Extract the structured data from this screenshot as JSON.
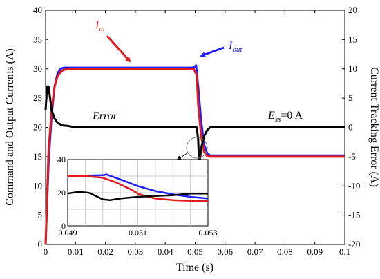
{
  "chart_data": {
    "type": "line",
    "xlabel": "Time (s)",
    "ylabel_left": "Command and Output Currents (A)",
    "ylabel_right": "Current Tracking Error (A)",
    "xlim": [
      0,
      0.1
    ],
    "ylim_left": [
      0,
      40
    ],
    "ylim_right": [
      -20,
      20
    ],
    "x_ticks": [
      "0",
      "0.01",
      "0.02",
      "0.03",
      "0.04",
      "0.05",
      "0.06",
      "0.07",
      "0.08",
      "0.09",
      "0.1"
    ],
    "y_ticks_left": [
      "0",
      "5",
      "10",
      "15",
      "20",
      "25",
      "30",
      "35",
      "40"
    ],
    "y_ticks_right": [
      "-20",
      "-15",
      "-10",
      "-5",
      "0",
      "5",
      "10",
      "15",
      "20"
    ],
    "grid": false,
    "series": [
      {
        "name": "Im",
        "axis": "left",
        "color": "#e31a1c",
        "x": [
          0,
          0.001,
          0.002,
          0.003,
          0.004,
          0.005,
          0.006,
          0.008,
          0.01,
          0.02,
          0.03,
          0.04,
          0.0495,
          0.0505,
          0.051,
          0.052,
          0.053,
          0.054,
          0.055,
          0.06,
          0.07,
          0.08,
          0.09,
          0.1
        ],
        "y": [
          0,
          16,
          23,
          27,
          28.7,
          29.5,
          29.8,
          30,
          30,
          30,
          30,
          30,
          30,
          29,
          24,
          18.5,
          15.8,
          15.1,
          15,
          15,
          15,
          15,
          15,
          15
        ]
      },
      {
        "name": "Iout",
        "axis": "left",
        "color": "#1f1fff",
        "x": [
          0,
          0.001,
          0.002,
          0.003,
          0.004,
          0.005,
          0.006,
          0.008,
          0.01,
          0.02,
          0.03,
          0.04,
          0.0495,
          0.0503,
          0.051,
          0.052,
          0.053,
          0.054,
          0.055,
          0.06,
          0.07,
          0.08,
          0.09,
          0.1
        ],
        "y": [
          0,
          14,
          22,
          27,
          29.2,
          30,
          30.2,
          30.2,
          30.2,
          30.2,
          30.2,
          30.2,
          30.2,
          30.6,
          27,
          21,
          17,
          15.6,
          15.2,
          15.2,
          15.2,
          15.2,
          15.2,
          15.2
        ]
      },
      {
        "name": "Error",
        "axis": "right",
        "color": "#000000",
        "x": [
          0,
          0.0005,
          0.001,
          0.0015,
          0.002,
          0.003,
          0.004,
          0.005,
          0.006,
          0.007,
          0.008,
          0.01,
          0.02,
          0.03,
          0.04,
          0.0495,
          0.0505,
          0.051,
          0.0513,
          0.0517,
          0.052,
          0.053,
          0.054,
          0.055,
          0.06,
          0.07,
          0.08,
          0.09,
          0.1
        ],
        "y": [
          3,
          7,
          7,
          5,
          3,
          1.5,
          0.8,
          0.5,
          0.3,
          0.3,
          0.2,
          0,
          0,
          0,
          0,
          0,
          0,
          -2,
          -6,
          -5,
          -3.5,
          -1.5,
          -0.5,
          0,
          0,
          0,
          0,
          0,
          0
        ]
      }
    ],
    "annotations": {
      "im_sym": "I",
      "im_sub": "m",
      "iout_sym": "I",
      "iout_sub": "out",
      "error": "Error",
      "ess_sym": "E",
      "ess_sub": "ss",
      "ess_val": "=0 A"
    },
    "inset": {
      "xlim": [
        0.049,
        0.053
      ],
      "ylim": [
        0,
        40
      ],
      "x_ticks": [
        "0.049",
        "0.051",
        "0.053"
      ],
      "y_ticks": [
        "0",
        "20",
        "40"
      ],
      "grid": true,
      "series": [
        {
          "name": "Im",
          "color": "#e31a1c",
          "x": [
            0.049,
            0.0495,
            0.05,
            0.0504,
            0.0508,
            0.051,
            0.0512,
            0.0515,
            0.052,
            0.0525,
            0.053
          ],
          "y": [
            30,
            30,
            29,
            26,
            22,
            19.5,
            18,
            16.5,
            15.5,
            15.1,
            15
          ]
        },
        {
          "name": "Iout",
          "color": "#1f1fff",
          "x": [
            0.049,
            0.0495,
            0.05,
            0.0501,
            0.0505,
            0.051,
            0.0515,
            0.052,
            0.0525,
            0.053
          ],
          "y": [
            30,
            30.3,
            30.5,
            31,
            28,
            24,
            21,
            19,
            17.5,
            16.5
          ]
        },
        {
          "name": "Error",
          "color": "#000000",
          "x": [
            0.049,
            0.0493,
            0.0496,
            0.0498,
            0.05,
            0.0502,
            0.0505,
            0.051,
            0.0515,
            0.052,
            0.0525,
            0.053
          ],
          "y": [
            19.5,
            20.5,
            20,
            18,
            16,
            15.5,
            16.5,
            17.5,
            18,
            18.5,
            19.5,
            19.5
          ]
        }
      ]
    }
  },
  "colors": {
    "im": "#e31a1c",
    "iout": "#1f1fff",
    "error": "#000000"
  }
}
